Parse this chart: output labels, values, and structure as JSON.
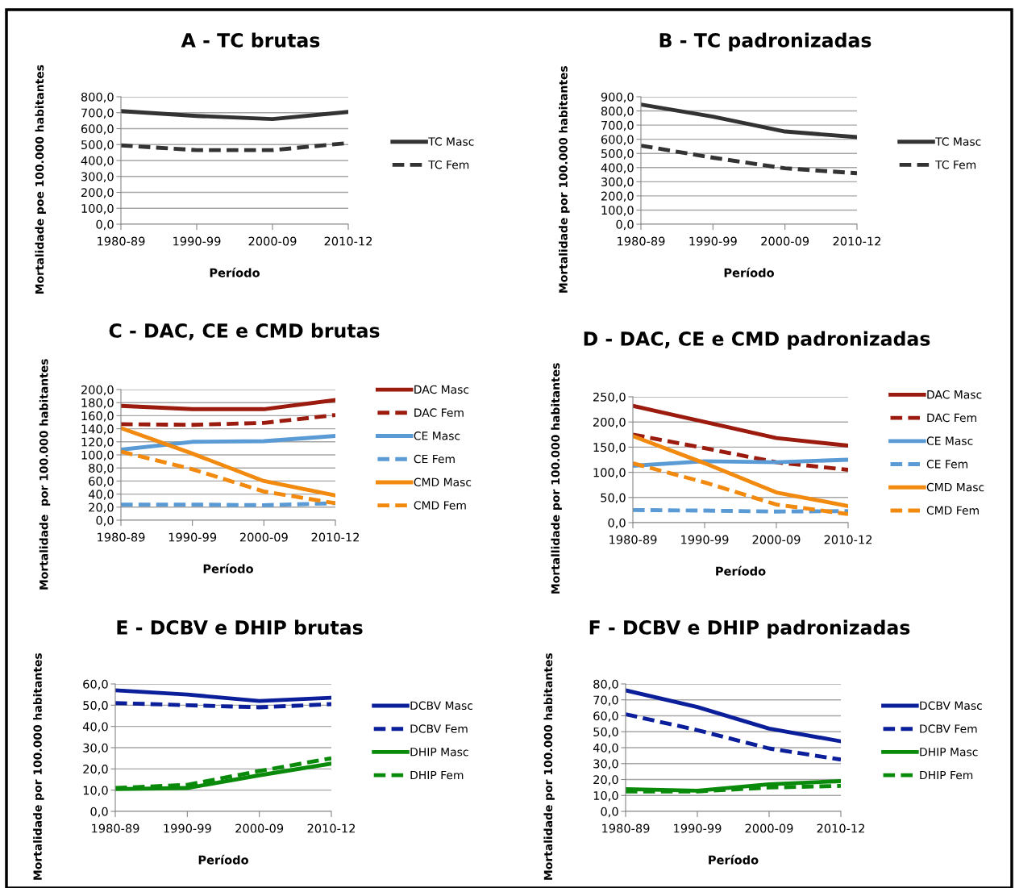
{
  "chart_data": [
    {
      "type": "line",
      "title": "A - TC brutas",
      "xlabel": "Período",
      "ylabel": "Mortalidade poe 100.000 habitantes",
      "categories": [
        "1980-89",
        "1990-99",
        "2000-09",
        "2010-12"
      ],
      "ylim": [
        0,
        800
      ],
      "yticks": [
        {
          "value": 0,
          "label": "0,0"
        },
        {
          "value": 100,
          "label": "100,0"
        },
        {
          "value": 200,
          "label": "200,0"
        },
        {
          "value": 300,
          "label": "300,0"
        },
        {
          "value": 400,
          "label": "400,0"
        },
        {
          "value": 500,
          "label": "500,0"
        },
        {
          "value": 600,
          "label": "600,0"
        },
        {
          "value": 700,
          "label": "700,0"
        },
        {
          "value": 800,
          "label": "800,0"
        }
      ],
      "grid": "y",
      "legend": "right",
      "series": [
        {
          "name": "TC Masc",
          "color": "#333333",
          "line_style": "solid",
          "values": [
            710,
            680,
            660,
            705
          ]
        },
        {
          "name": "TC Fem",
          "color": "#333333",
          "line_style": "dashed",
          "values": [
            495,
            465,
            465,
            510
          ]
        }
      ]
    },
    {
      "type": "line",
      "title": "B - TC padronizadas",
      "xlabel": "Período",
      "ylabel": "Mortalidade por 100.000 habitantes",
      "categories": [
        "1980-89",
        "1990-99",
        "2000-09",
        "2010-12"
      ],
      "ylim": [
        0,
        900
      ],
      "yticks": [
        {
          "value": 0,
          "label": "0,0"
        },
        {
          "value": 100,
          "label": "100,0"
        },
        {
          "value": 200,
          "label": "200,0"
        },
        {
          "value": 300,
          "label": "300,0"
        },
        {
          "value": 400,
          "label": "400,0"
        },
        {
          "value": 500,
          "label": "500,0"
        },
        {
          "value": 600,
          "label": "600,0"
        },
        {
          "value": 700,
          "label": "700,0"
        },
        {
          "value": 800,
          "label": "800,0"
        },
        {
          "value": 900,
          "label": "900,0"
        }
      ],
      "grid": "y",
      "legend": "right",
      "series": [
        {
          "name": "TC Masc",
          "color": "#333333",
          "line_style": "solid",
          "values": [
            845,
            760,
            655,
            615
          ]
        },
        {
          "name": "TC Fem",
          "color": "#333333",
          "line_style": "dashed",
          "values": [
            555,
            470,
            395,
            360
          ]
        }
      ]
    },
    {
      "type": "line",
      "title": "C - DAC, CE e CMD brutas",
      "xlabel": "Período",
      "ylabel": "Mortalidade  por 100.000 habitantes",
      "categories": [
        "1980-89",
        "1990-99",
        "2000-09",
        "2010-12"
      ],
      "ylim": [
        0,
        200
      ],
      "yticks": [
        {
          "value": 0,
          "label": "0,0"
        },
        {
          "value": 20,
          "label": "20,0"
        },
        {
          "value": 40,
          "label": "40,0"
        },
        {
          "value": 60,
          "label": "60,0"
        },
        {
          "value": 80,
          "label": "80,0"
        },
        {
          "value": 100,
          "label": "100,0"
        },
        {
          "value": 120,
          "label": "120,0"
        },
        {
          "value": 140,
          "label": "140,0"
        },
        {
          "value": 160,
          "label": "160,0"
        },
        {
          "value": 180,
          "label": "180,0"
        },
        {
          "value": 200,
          "label": "200,0"
        }
      ],
      "grid": "y",
      "legend": "right",
      "series": [
        {
          "name": "DAC Masc",
          "color": "#9b1b0e",
          "line_style": "solid",
          "values": [
            175,
            170,
            170,
            184
          ]
        },
        {
          "name": "DAC Fem",
          "color": "#9b1b0e",
          "line_style": "dashed",
          "values": [
            147,
            146,
            149,
            161
          ]
        },
        {
          "name": "CE Masc",
          "color": "#5b9bd5",
          "line_style": "solid",
          "values": [
            108,
            120,
            121,
            129
          ]
        },
        {
          "name": "CE Fem",
          "color": "#5b9bd5",
          "line_style": "dashed",
          "values": [
            24,
            24,
            23,
            26
          ]
        },
        {
          "name": "CMD Masc",
          "color": "#f28a0f",
          "line_style": "solid",
          "values": [
            141,
            102,
            60,
            38
          ]
        },
        {
          "name": "CMD Fem",
          "color": "#f28a0f",
          "line_style": "dashed",
          "values": [
            105,
            78,
            44,
            26
          ]
        }
      ]
    },
    {
      "type": "line",
      "title": "D - DAC, CE e CMD padronizadas",
      "xlabel": "Período",
      "ylabel": "Mortallidade por 100.000 habitantes",
      "categories": [
        "1980-89",
        "1990-99",
        "2000-09",
        "2010-12"
      ],
      "ylim": [
        0,
        250
      ],
      "yticks": [
        {
          "value": 0,
          "label": "0,0"
        },
        {
          "value": 50,
          "label": "50,0"
        },
        {
          "value": 100,
          "label": "100,0"
        },
        {
          "value": 150,
          "label": "150,0"
        },
        {
          "value": 200,
          "label": "200,0"
        },
        {
          "value": 250,
          "label": "250,0"
        }
      ],
      "grid": "y",
      "legend": "right",
      "series": [
        {
          "name": "DAC Masc",
          "color": "#9b1b0e",
          "line_style": "solid",
          "values": [
            232,
            200,
            168,
            153
          ]
        },
        {
          "name": "DAC Fem",
          "color": "#9b1b0e",
          "line_style": "dashed",
          "values": [
            175,
            148,
            120,
            105
          ]
        },
        {
          "name": "CE Masc",
          "color": "#5b9bd5",
          "line_style": "solid",
          "values": [
            113,
            122,
            120,
            125
          ]
        },
        {
          "name": "CE Fem",
          "color": "#5b9bd5",
          "line_style": "dashed",
          "values": [
            25,
            24,
            22,
            23
          ]
        },
        {
          "name": "CMD Masc",
          "color": "#f28a0f",
          "line_style": "solid",
          "values": [
            172,
            118,
            60,
            33
          ]
        },
        {
          "name": "CMD Fem",
          "color": "#f28a0f",
          "line_style": "dashed",
          "values": [
            118,
            80,
            36,
            17
          ]
        }
      ]
    },
    {
      "type": "line",
      "title": "E - DCBV e DHIP brutas",
      "xlabel": "Período",
      "ylabel": "Mortalidade por 100.000 habitantes",
      "categories": [
        "1980-89",
        "1990-99",
        "2000-09",
        "2010-12"
      ],
      "ylim": [
        0,
        60
      ],
      "yticks": [
        {
          "value": 0,
          "label": "0,0"
        },
        {
          "value": 10,
          "label": "10,0"
        },
        {
          "value": 20,
          "label": "20,0"
        },
        {
          "value": 30,
          "label": "30,0"
        },
        {
          "value": 40,
          "label": "40,0"
        },
        {
          "value": 50,
          "label": "50,0"
        },
        {
          "value": 60,
          "label": "60,0"
        }
      ],
      "grid": "y",
      "legend": "right",
      "series": [
        {
          "name": "DCBV Masc",
          "color": "#0c1f9b",
          "line_style": "solid",
          "values": [
            57,
            55,
            52,
            53.5
          ]
        },
        {
          "name": "DCBV Fem",
          "color": "#0c1f9b",
          "line_style": "dashed",
          "values": [
            51,
            50,
            49,
            50.5
          ]
        },
        {
          "name": "DHIP Masc",
          "color": "#0a8a0a",
          "line_style": "solid",
          "values": [
            10.5,
            11,
            17,
            22.5
          ]
        },
        {
          "name": "DHIP Fem",
          "color": "#0a8a0a",
          "line_style": "dashed",
          "values": [
            11,
            12.5,
            19,
            25
          ]
        }
      ]
    },
    {
      "type": "line",
      "title": "F - DCBV e DHIP padronizadas",
      "xlabel": "Período",
      "ylabel": "Mortalidade por 100.000 habitantes",
      "categories": [
        "1980-89",
        "1990-99",
        "2000-09",
        "2010-12"
      ],
      "ylim": [
        0,
        80
      ],
      "yticks": [
        {
          "value": 0,
          "label": "0,0"
        },
        {
          "value": 10,
          "label": "10,0"
        },
        {
          "value": 20,
          "label": "20,0"
        },
        {
          "value": 30,
          "label": "30,0"
        },
        {
          "value": 40,
          "label": "40,0"
        },
        {
          "value": 50,
          "label": "50,0"
        },
        {
          "value": 60,
          "label": "60,0"
        },
        {
          "value": 70,
          "label": "70,0"
        },
        {
          "value": 80,
          "label": "80,0"
        }
      ],
      "grid": "y",
      "legend": "right",
      "series": [
        {
          "name": "DCBV Masc",
          "color": "#0c1f9b",
          "line_style": "solid",
          "values": [
            76,
            65.5,
            52,
            44
          ]
        },
        {
          "name": "DCBV Fem",
          "color": "#0c1f9b",
          "line_style": "dashed",
          "values": [
            61,
            51,
            39.5,
            32.5
          ]
        },
        {
          "name": "DHIP Masc",
          "color": "#0a8a0a",
          "line_style": "solid",
          "values": [
            14,
            13,
            17,
            19
          ]
        },
        {
          "name": "DHIP Fem",
          "color": "#0a8a0a",
          "line_style": "dashed",
          "values": [
            12.5,
            12.5,
            15,
            16
          ]
        }
      ]
    }
  ]
}
